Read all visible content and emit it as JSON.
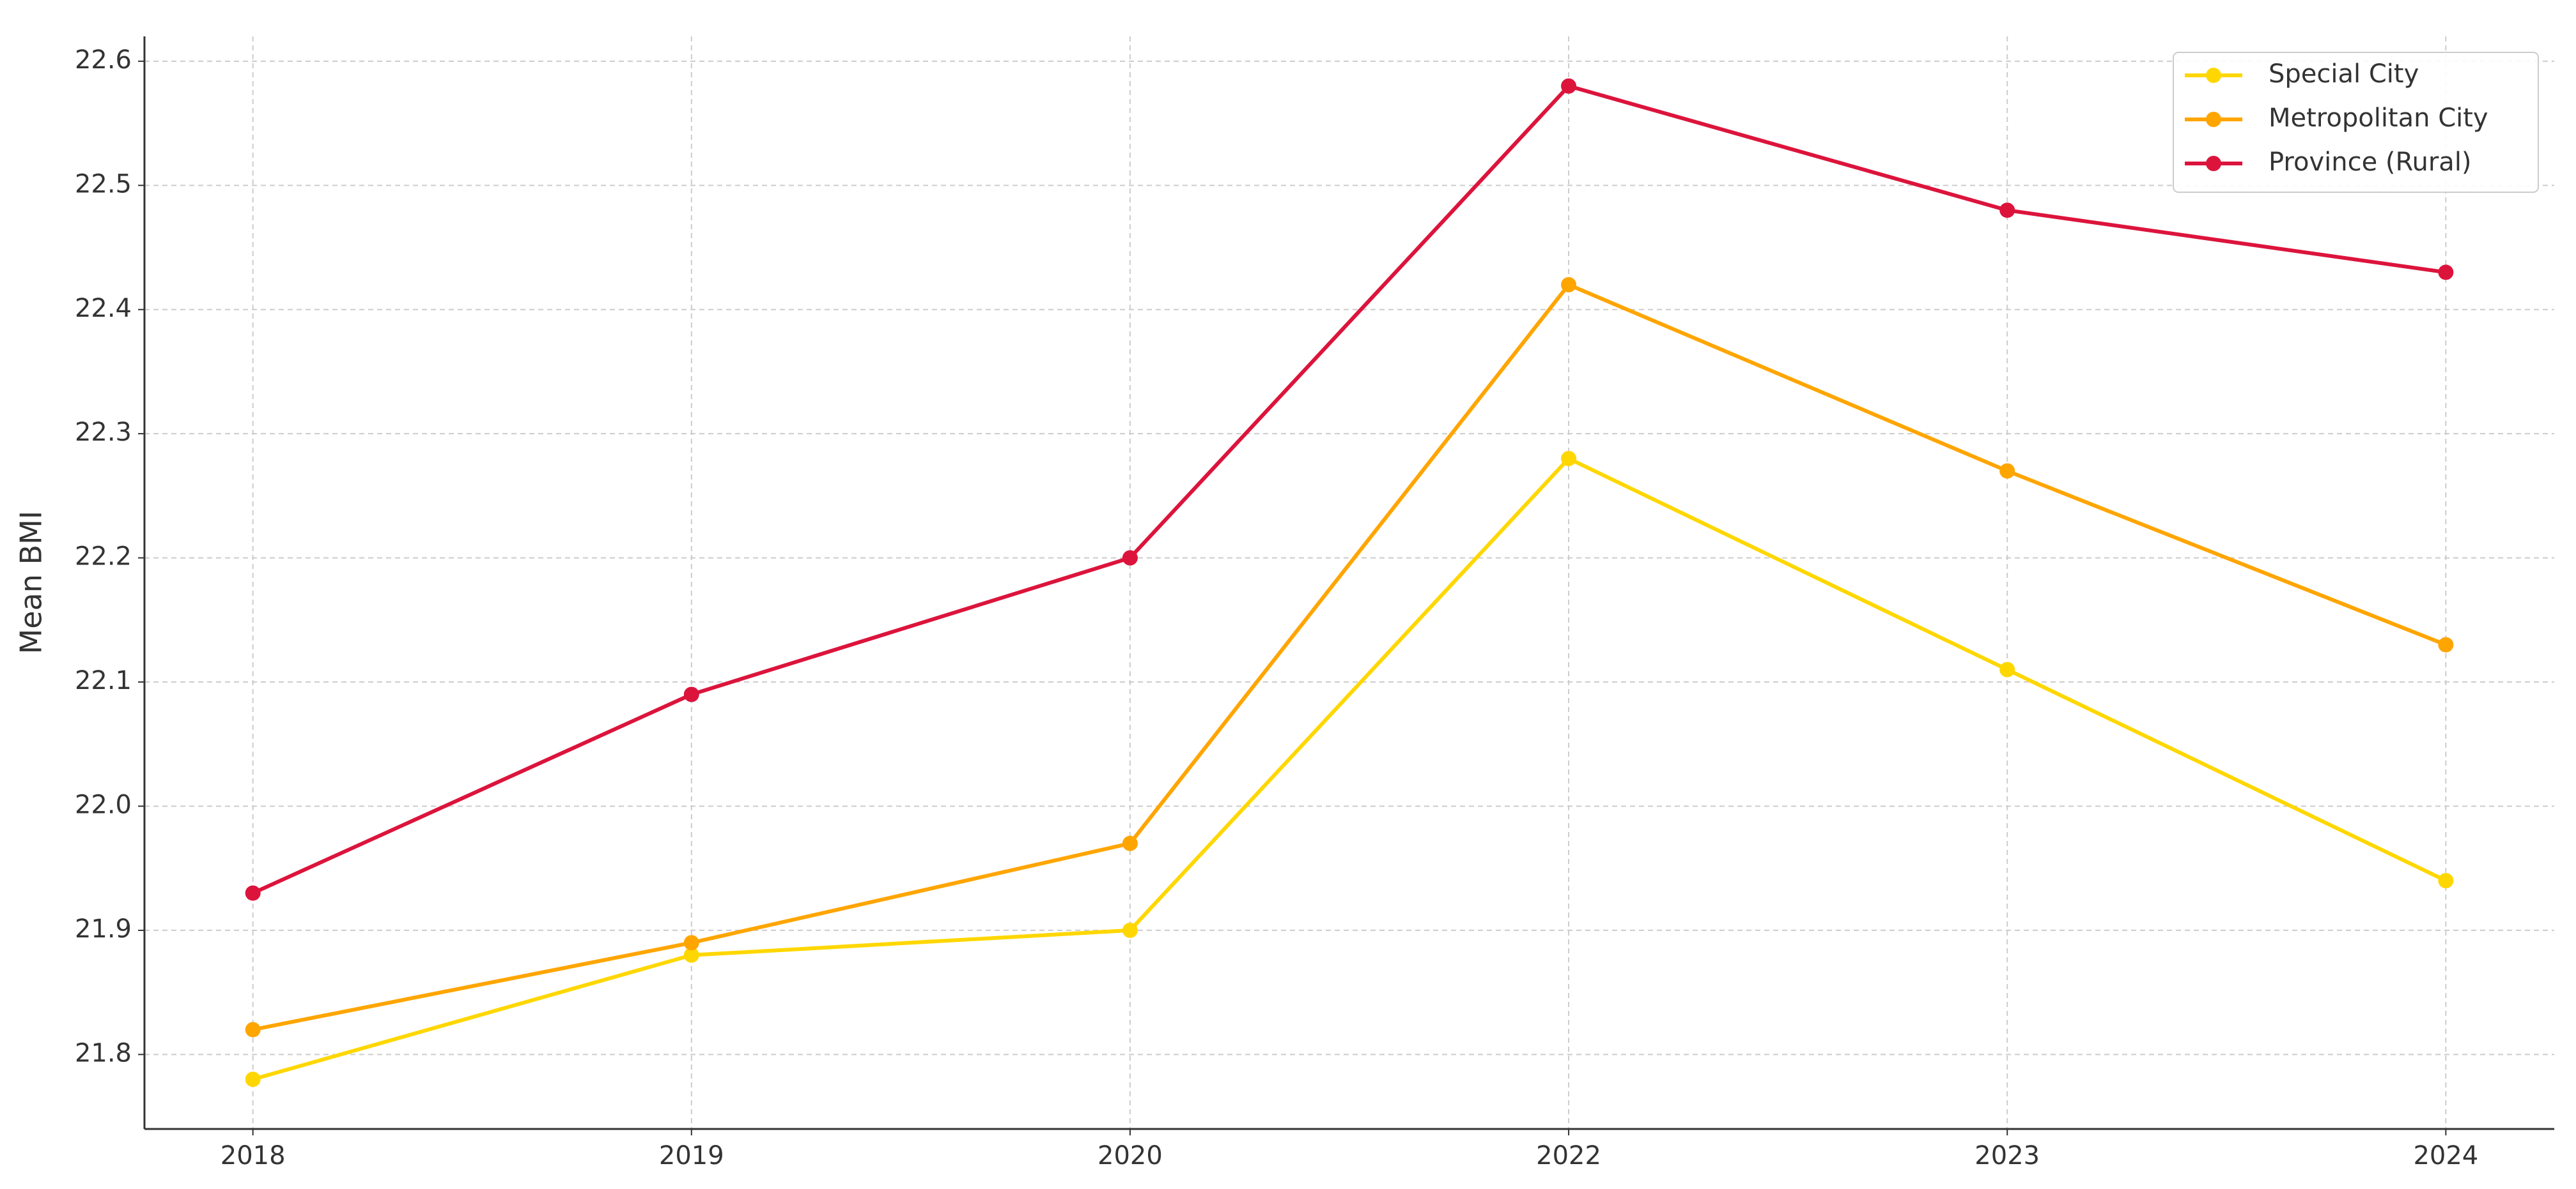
{
  "chart_data": {
    "type": "line",
    "y_label": "Mean BMI",
    "categories": [
      "2018",
      "2019",
      "2020",
      "2022",
      "2023",
      "2024"
    ],
    "series": [
      {
        "name": "Special City",
        "color": "#FFD700",
        "values": [
          21.78,
          21.88,
          21.9,
          22.28,
          22.11,
          21.94
        ]
      },
      {
        "name": "Metropolitan City",
        "color": "#FFA500",
        "values": [
          21.82,
          21.89,
          21.97,
          22.42,
          22.27,
          22.13
        ]
      },
      {
        "name": "Province (Rural)",
        "color": "#DC143C",
        "values": [
          21.93,
          22.09,
          22.2,
          22.58,
          22.48,
          22.43
        ]
      }
    ],
    "ylim": [
      21.74,
      22.62
    ],
    "yticks": [
      21.8,
      21.9,
      {
        "value": 22,
        "label": "22.0"
      },
      22.1,
      22.2,
      22.3,
      22.4,
      22.5,
      22.6
    ],
    "grid": true,
    "legend": "upper right"
  }
}
